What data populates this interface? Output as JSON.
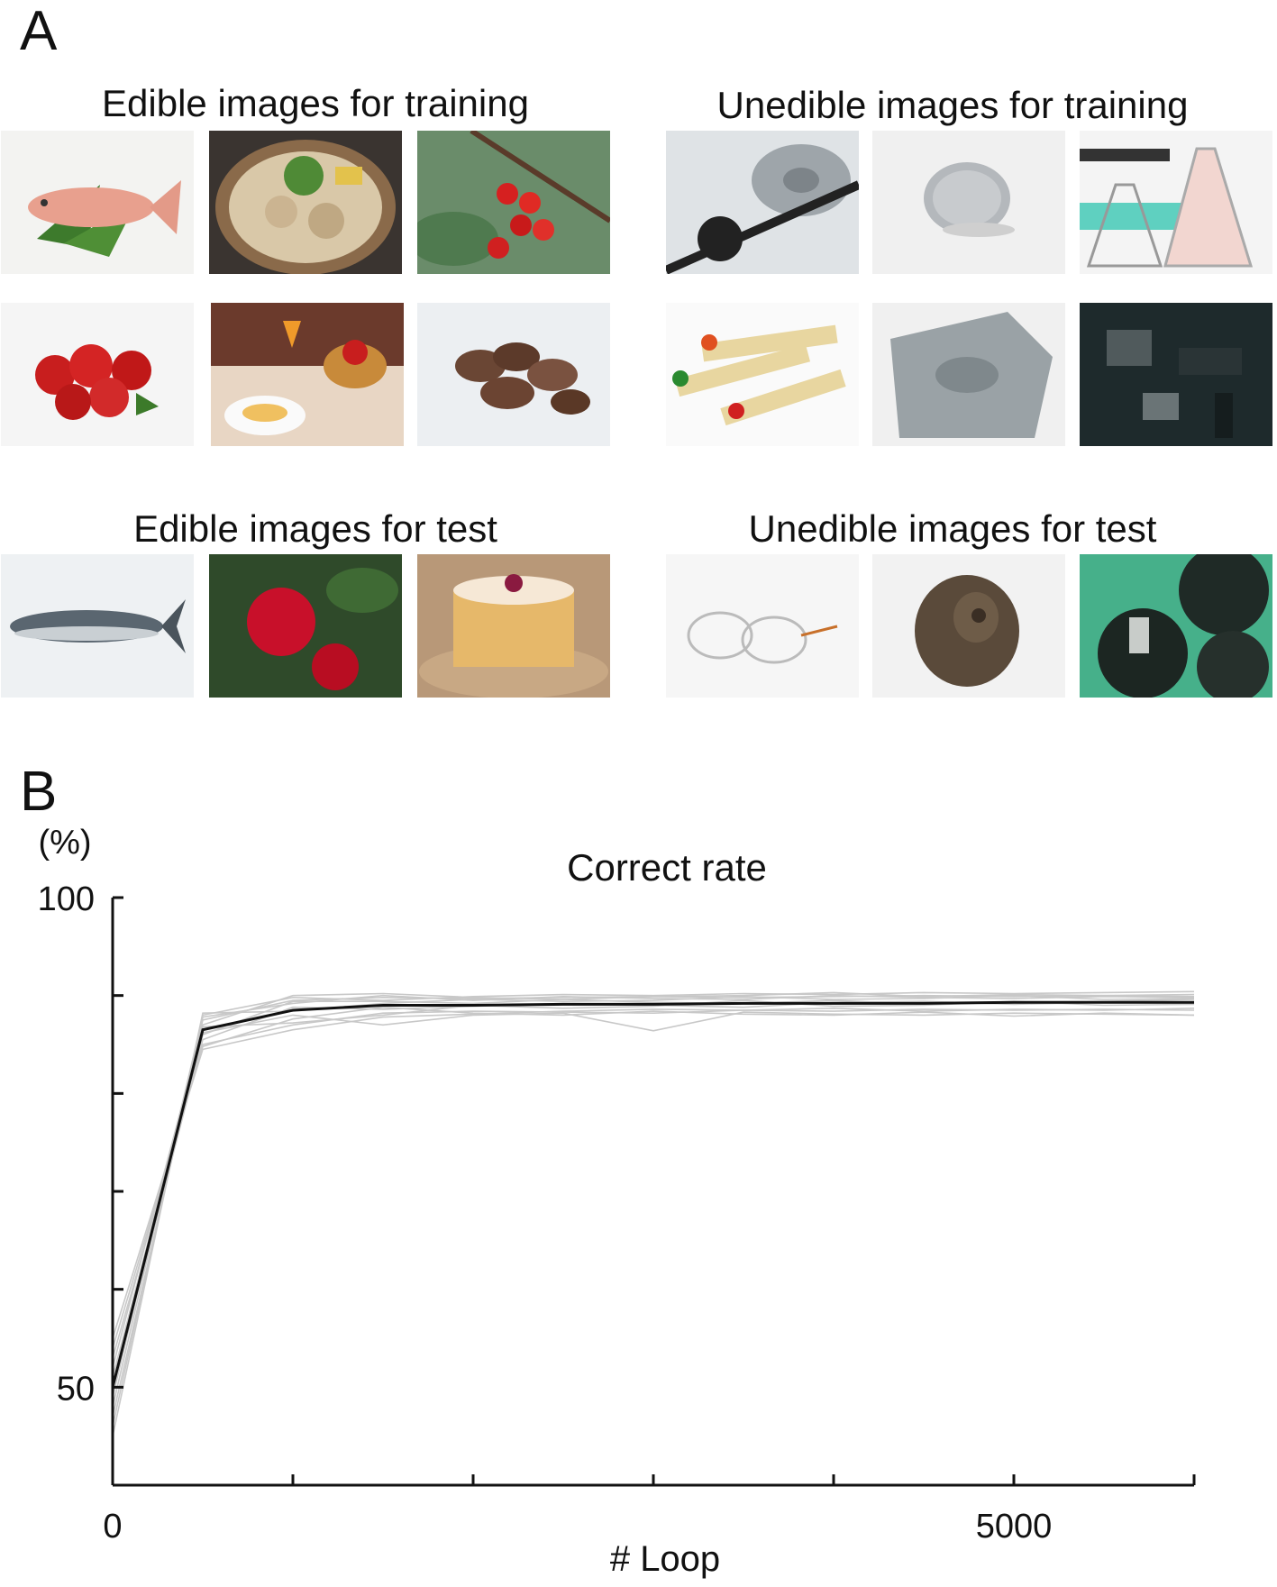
{
  "panel_a": {
    "letter": "A",
    "groups": [
      {
        "title": "Edible images for training",
        "images": [
          "fish",
          "hot-pot",
          "cherries",
          "strawberries",
          "table-setting",
          "mushrooms"
        ]
      },
      {
        "title": "Unedible images for training",
        "images": [
          "gear-belt",
          "coin",
          "flasks",
          "crayons",
          "fossil-stone",
          "circuit-board"
        ]
      },
      {
        "title": "Edible images for test",
        "images": [
          "bonito-fish",
          "apples",
          "chiffon-cake"
        ]
      },
      {
        "title": "Unedible images for test",
        "images": [
          "eyeglasses",
          "ammonite",
          "gears"
        ]
      }
    ]
  },
  "panel_b": {
    "letter": "B"
  },
  "chart_data": {
    "type": "line",
    "title": "Correct rate",
    "ylabel": "(%)",
    "xlabel": "# Loop",
    "xlim": [
      0,
      6000
    ],
    "ylim": [
      40,
      100
    ],
    "x_ticks": [
      0,
      1000,
      2000,
      3000,
      4000,
      5000,
      6000
    ],
    "x_tick_labels": {
      "0": "0",
      "5000": "5000"
    },
    "y_ticks": [
      50,
      60,
      70,
      80,
      90,
      100
    ],
    "y_tick_labels": {
      "50": "50",
      "100": "100"
    },
    "mean_series": {
      "color": "#111111",
      "x": [
        0,
        500,
        1000,
        1500,
        2000,
        2500,
        3000,
        3500,
        4000,
        4500,
        5000,
        5500,
        6000
      ],
      "y": [
        50,
        86.5,
        88.5,
        89.0,
        89.0,
        89.1,
        89.1,
        89.2,
        89.2,
        89.2,
        89.3,
        89.3,
        89.3
      ]
    },
    "runs": {
      "color": "#c8c8c8",
      "x": [
        0,
        500,
        1000,
        1500,
        2000,
        2500,
        3000,
        3500,
        4000,
        4500,
        5000,
        5500,
        6000
      ],
      "y": [
        [
          48,
          87.5,
          89.5,
          89.8,
          89.7,
          89.8,
          89.9,
          89.8,
          89.9,
          90.0,
          89.9,
          90.0,
          90.1
        ],
        [
          53,
          85.0,
          87.0,
          88.2,
          88.4,
          88.3,
          88.2,
          88.5,
          88.4,
          88.6,
          88.5,
          88.6,
          88.5
        ],
        [
          46,
          88.0,
          89.8,
          89.5,
          89.9,
          90.1,
          90.0,
          90.2,
          90.1,
          90.3,
          90.2,
          90.3,
          90.4
        ],
        [
          51,
          86.2,
          88.0,
          87.0,
          88.0,
          88.2,
          86.4,
          88.3,
          88.1,
          88.0,
          88.2,
          88.1,
          88.0
        ],
        [
          55,
          84.5,
          86.5,
          87.8,
          88.1,
          88.4,
          88.6,
          88.5,
          88.7,
          88.4,
          88.6,
          88.5,
          88.7
        ],
        [
          47,
          87.0,
          90.0,
          90.2,
          89.8,
          89.6,
          89.9,
          90.0,
          90.3,
          89.9,
          90.1,
          90.0,
          89.9
        ],
        [
          50,
          85.5,
          88.8,
          88.6,
          88.9,
          89.2,
          89.0,
          88.8,
          89.3,
          89.4,
          89.1,
          89.3,
          89.2
        ],
        [
          52,
          86.8,
          87.2,
          88.0,
          89.0,
          88.7,
          88.9,
          89.5,
          88.9,
          89.0,
          89.4,
          89.0,
          89.1
        ],
        [
          49,
          87.8,
          89.2,
          90.0,
          89.5,
          89.9,
          89.7,
          89.6,
          90.0,
          89.8,
          89.7,
          89.9,
          89.8
        ],
        [
          54,
          84.8,
          87.6,
          88.8,
          88.2,
          88.0,
          88.4,
          88.1,
          88.0,
          88.3,
          87.9,
          88.2,
          88.0
        ],
        [
          45,
          88.2,
          88.4,
          89.2,
          89.6,
          89.4,
          89.5,
          89.9,
          89.6,
          89.7,
          90.0,
          89.6,
          89.7
        ],
        [
          50,
          86.0,
          89.4,
          89.4,
          89.2,
          89.6,
          89.3,
          89.2,
          89.5,
          89.1,
          89.3,
          89.4,
          89.6
        ]
      ]
    }
  }
}
